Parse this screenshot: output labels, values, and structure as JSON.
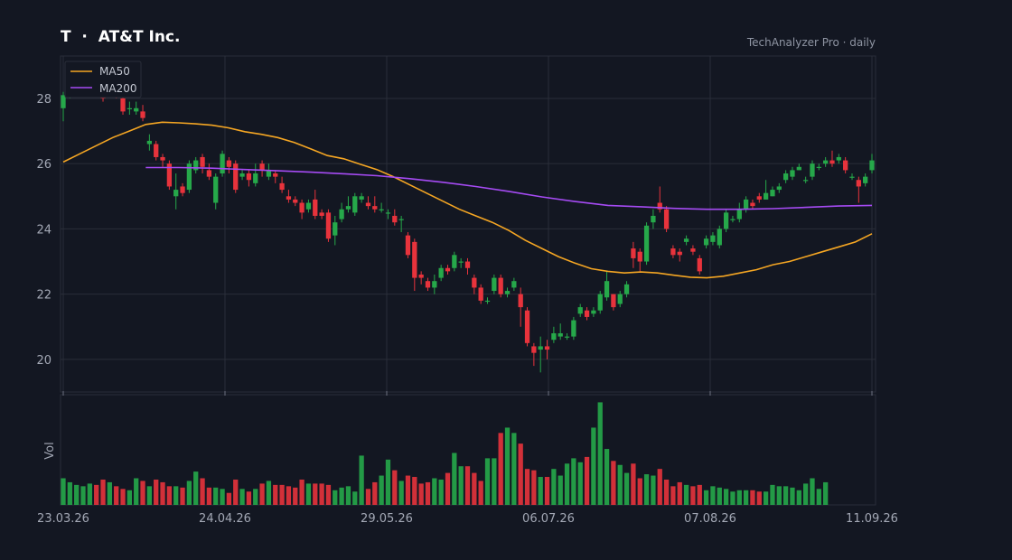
{
  "header": {
    "title": "T  ·  AT&T Inc.",
    "source": "TechAnalyzer Pro · daily"
  },
  "colors": {
    "background": "#131722",
    "up": "#26a84a",
    "down": "#e8333c",
    "ma50": "#f5a623",
    "ma200": "#a64bf4",
    "grid": "#2a2e39",
    "axis_text": "#a3a8b5"
  },
  "chart_data": {
    "type": "candlestick",
    "x_tick_labels": [
      "23.03.26",
      "24.04.26",
      "29.05.26",
      "06.07.26",
      "07.08.26",
      "11.09.26"
    ],
    "y_ticks": [
      20,
      22,
      24,
      26,
      28
    ],
    "ylim": [
      19,
      29.3
    ],
    "volume_label": "Vol",
    "grid": true,
    "legend": {
      "position": "top-left",
      "entries": [
        "MA50",
        "MA200"
      ]
    },
    "candles": [
      [
        27.7,
        28.1,
        28.2,
        27.3
      ],
      [
        28.1,
        28.2,
        28.3,
        28.0
      ],
      [
        28.2,
        28.3,
        28.4,
        28.1
      ],
      [
        28.3,
        28.4,
        28.5,
        28.2
      ],
      [
        28.4,
        28.5,
        28.6,
        28.3
      ],
      [
        28.5,
        28.4,
        28.6,
        28.3
      ],
      [
        28.5,
        28.0,
        28.6,
        27.9
      ],
      [
        28.2,
        28.6,
        28.8,
        28.1
      ],
      [
        28.4,
        28.2,
        28.6,
        28.0
      ],
      [
        28.0,
        27.6,
        28.1,
        27.5
      ],
      [
        27.7,
        27.7,
        27.9,
        27.5
      ],
      [
        27.6,
        27.7,
        27.9,
        27.5
      ],
      [
        27.6,
        27.4,
        27.8,
        27.3
      ],
      [
        26.6,
        26.7,
        26.9,
        26.4
      ],
      [
        26.6,
        26.2,
        26.7,
        26.1
      ],
      [
        26.2,
        26.1,
        26.3,
        25.9
      ],
      [
        26.0,
        25.3,
        26.1,
        25.2
      ],
      [
        25.0,
        25.2,
        25.7,
        24.6
      ],
      [
        25.3,
        25.1,
        25.4,
        25.0
      ],
      [
        25.2,
        26.0,
        26.1,
        25.1
      ],
      [
        25.8,
        26.1,
        26.2,
        25.7
      ],
      [
        26.2,
        25.9,
        26.3,
        25.7
      ],
      [
        25.8,
        25.6,
        26.0,
        25.5
      ],
      [
        24.8,
        25.6,
        25.7,
        24.6
      ],
      [
        25.7,
        26.3,
        26.4,
        25.6
      ],
      [
        26.1,
        25.9,
        26.2,
        25.7
      ],
      [
        26.0,
        25.2,
        26.1,
        25.1
      ],
      [
        25.6,
        25.7,
        25.8,
        25.5
      ],
      [
        25.7,
        25.5,
        25.8,
        25.3
      ],
      [
        25.4,
        25.7,
        26.0,
        25.3
      ],
      [
        26.0,
        25.8,
        26.1,
        25.6
      ],
      [
        25.6,
        25.8,
        26.0,
        25.5
      ],
      [
        25.7,
        25.6,
        25.8,
        25.4
      ],
      [
        25.4,
        25.2,
        25.6,
        25.1
      ],
      [
        25.0,
        24.9,
        25.2,
        24.8
      ],
      [
        24.9,
        24.8,
        25.0,
        24.7
      ],
      [
        24.8,
        24.5,
        24.9,
        24.3
      ],
      [
        24.6,
        24.8,
        24.9,
        24.5
      ],
      [
        24.9,
        24.4,
        25.2,
        24.3
      ],
      [
        24.5,
        24.4,
        24.6,
        24.3
      ],
      [
        24.5,
        23.7,
        24.6,
        23.6
      ],
      [
        23.8,
        24.2,
        24.4,
        23.5
      ],
      [
        24.3,
        24.6,
        24.8,
        24.2
      ],
      [
        24.6,
        24.7,
        25.0,
        24.5
      ],
      [
        24.5,
        25.0,
        25.1,
        24.4
      ],
      [
        24.9,
        25.0,
        25.1,
        24.8
      ],
      [
        24.8,
        24.7,
        25.0,
        24.6
      ],
      [
        24.7,
        24.6,
        25.0,
        24.5
      ],
      [
        24.6,
        24.6,
        24.8,
        24.5
      ],
      [
        24.5,
        24.5,
        24.6,
        24.3
      ],
      [
        24.4,
        24.2,
        24.6,
        24.1
      ],
      [
        24.3,
        24.3,
        24.4,
        23.9
      ],
      [
        23.8,
        23.2,
        23.9,
        23.1
      ],
      [
        23.6,
        22.5,
        23.7,
        22.1
      ],
      [
        22.6,
        22.5,
        22.7,
        22.3
      ],
      [
        22.4,
        22.2,
        22.5,
        22.1
      ],
      [
        22.2,
        22.4,
        22.6,
        22.0
      ],
      [
        22.5,
        22.8,
        22.9,
        22.4
      ],
      [
        22.8,
        22.7,
        22.9,
        22.6
      ],
      [
        22.8,
        23.2,
        23.3,
        22.7
      ],
      [
        23.0,
        23.0,
        23.1,
        22.8
      ],
      [
        23.0,
        22.8,
        23.1,
        22.6
      ],
      [
        22.5,
        22.2,
        22.6,
        22.0
      ],
      [
        22.2,
        21.8,
        22.3,
        21.7
      ],
      [
        21.8,
        21.8,
        21.9,
        21.7
      ],
      [
        22.1,
        22.5,
        22.6,
        22.0
      ],
      [
        22.5,
        22.0,
        22.6,
        21.9
      ],
      [
        22.0,
        22.1,
        22.2,
        21.9
      ],
      [
        22.2,
        22.4,
        22.5,
        22.1
      ],
      [
        22.0,
        21.6,
        22.2,
        21.0
      ],
      [
        21.5,
        20.5,
        21.6,
        20.4
      ],
      [
        20.4,
        20.2,
        20.5,
        19.8
      ],
      [
        20.3,
        20.4,
        20.7,
        19.6
      ],
      [
        20.4,
        20.3,
        20.6,
        20.0
      ],
      [
        20.6,
        20.8,
        21.0,
        20.5
      ],
      [
        20.7,
        20.8,
        21.1,
        20.6
      ],
      [
        20.7,
        20.7,
        20.8,
        20.6
      ],
      [
        20.7,
        21.2,
        21.3,
        20.6
      ],
      [
        21.4,
        21.6,
        21.7,
        21.3
      ],
      [
        21.5,
        21.3,
        21.6,
        21.2
      ],
      [
        21.4,
        21.5,
        21.6,
        21.3
      ],
      [
        21.5,
        22.0,
        22.1,
        21.4
      ],
      [
        21.9,
        22.4,
        22.7,
        21.8
      ],
      [
        22.0,
        21.6,
        22.0,
        21.5
      ],
      [
        21.7,
        22.0,
        22.1,
        21.6
      ],
      [
        22.0,
        22.3,
        22.4,
        21.9
      ],
      [
        23.4,
        23.1,
        23.6,
        22.8
      ],
      [
        23.3,
        23.0,
        23.4,
        22.7
      ],
      [
        23.0,
        24.1,
        24.2,
        22.9
      ],
      [
        24.2,
        24.4,
        24.6,
        24.0
      ],
      [
        24.8,
        24.6,
        25.3,
        24.5
      ],
      [
        24.6,
        24.0,
        24.7,
        23.9
      ],
      [
        23.4,
        23.2,
        23.5,
        23.1
      ],
      [
        23.3,
        23.2,
        23.4,
        23.0
      ],
      [
        23.6,
        23.7,
        23.8,
        23.5
      ],
      [
        23.4,
        23.3,
        23.5,
        23.2
      ],
      [
        23.1,
        22.7,
        23.2,
        22.6
      ],
      [
        23.5,
        23.7,
        23.8,
        23.4
      ],
      [
        23.6,
        23.8,
        23.9,
        23.5
      ],
      [
        23.5,
        24.0,
        24.1,
        23.4
      ],
      [
        24.0,
        24.5,
        24.6,
        23.9
      ],
      [
        24.3,
        24.3,
        24.4,
        24.2
      ],
      [
        24.3,
        24.6,
        24.8,
        24.2
      ],
      [
        24.6,
        24.9,
        25.0,
        24.5
      ],
      [
        24.8,
        24.7,
        24.9,
        24.6
      ],
      [
        25.0,
        24.9,
        25.1,
        24.8
      ],
      [
        24.9,
        25.1,
        25.5,
        24.9
      ],
      [
        25.0,
        25.2,
        25.3,
        25.0
      ],
      [
        25.2,
        25.3,
        25.4,
        25.1
      ],
      [
        25.5,
        25.7,
        25.8,
        25.4
      ],
      [
        25.6,
        25.8,
        25.9,
        25.5
      ],
      [
        25.8,
        25.9,
        26.0,
        25.8
      ],
      [
        25.5,
        25.5,
        25.6,
        25.4
      ],
      [
        25.6,
        26.0,
        26.1,
        25.5
      ],
      [
        25.9,
        25.9,
        26.0,
        25.8
      ],
      [
        26.0,
        26.1,
        26.2,
        25.9
      ],
      [
        26.1,
        26.0,
        26.4,
        25.9
      ],
      [
        26.1,
        26.2,
        26.3,
        26.0
      ],
      [
        26.1,
        25.8,
        26.2,
        25.7
      ],
      [
        25.6,
        25.6,
        25.7,
        25.5
      ],
      [
        25.5,
        25.3,
        25.6,
        24.8
      ],
      [
        25.4,
        25.6,
        25.7,
        25.3
      ],
      [
        25.8,
        26.1,
        26.3,
        25.7
      ]
    ],
    "volumes": [
      1.0,
      0.85,
      0.75,
      0.7,
      0.8,
      0.75,
      0.95,
      0.85,
      0.7,
      0.6,
      0.55,
      1.0,
      0.9,
      0.7,
      0.95,
      0.85,
      0.7,
      0.7,
      0.65,
      0.9,
      1.25,
      1.0,
      0.65,
      0.65,
      0.6,
      0.45,
      0.95,
      0.6,
      0.5,
      0.6,
      0.8,
      0.9,
      0.75,
      0.75,
      0.7,
      0.65,
      0.95,
      0.8,
      0.8,
      0.8,
      0.75,
      0.55,
      0.65,
      0.7,
      0.5,
      1.85,
      0.6,
      0.85,
      1.1,
      1.7,
      1.3,
      0.9,
      1.1,
      1.05,
      0.8,
      0.85,
      1.0,
      0.95,
      1.2,
      1.95,
      1.45,
      1.45,
      1.2,
      0.9,
      1.75,
      1.75,
      2.7,
      2.9,
      2.7,
      2.3,
      1.35,
      1.3,
      1.05,
      1.05,
      1.35,
      1.1,
      1.55,
      1.75,
      1.6,
      1.8,
      2.9,
      3.85,
      2.1,
      1.65,
      1.5,
      1.2,
      1.55,
      1.0,
      1.15,
      1.1,
      1.35,
      0.95,
      0.7,
      0.85,
      0.75,
      0.7,
      0.75,
      0.55,
      0.7,
      0.65,
      0.6,
      0.5,
      0.55,
      0.55,
      0.55,
      0.5,
      0.5,
      0.75,
      0.7,
      0.7,
      0.65,
      0.55,
      0.8,
      1.0,
      0.6,
      0.85
    ],
    "ma50": [
      [
        0,
        26.05
      ],
      [
        4,
        26.3
      ],
      [
        8,
        26.55
      ],
      [
        12,
        26.8
      ],
      [
        16,
        27.0
      ],
      [
        20,
        27.2
      ],
      [
        24,
        27.27
      ],
      [
        28,
        27.25
      ],
      [
        32,
        27.22
      ],
      [
        36,
        27.18
      ],
      [
        40,
        27.1
      ],
      [
        44,
        26.98
      ],
      [
        48,
        26.9
      ],
      [
        52,
        26.8
      ],
      [
        56,
        26.65
      ],
      [
        60,
        26.45
      ],
      [
        64,
        26.25
      ],
      [
        68,
        26.15
      ],
      [
        72,
        25.98
      ],
      [
        76,
        25.82
      ],
      [
        80,
        25.6
      ],
      [
        84,
        25.35
      ],
      [
        88,
        25.1
      ],
      [
        92,
        24.85
      ],
      [
        96,
        24.6
      ],
      [
        100,
        24.4
      ],
      [
        104,
        24.2
      ],
      [
        108,
        23.95
      ],
      [
        112,
        23.65
      ],
      [
        116,
        23.4
      ],
      [
        120,
        23.15
      ],
      [
        124,
        22.95
      ],
      [
        128,
        22.78
      ],
      [
        132,
        22.7
      ],
      [
        136,
        22.65
      ],
      [
        140,
        22.68
      ],
      [
        144,
        22.65
      ],
      [
        148,
        22.58
      ],
      [
        152,
        22.52
      ],
      [
        156,
        22.5
      ],
      [
        160,
        22.55
      ],
      [
        164,
        22.65
      ],
      [
        168,
        22.75
      ],
      [
        172,
        22.9
      ],
      [
        176,
        23.0
      ],
      [
        180,
        23.15
      ],
      [
        184,
        23.3
      ],
      [
        188,
        23.45
      ],
      [
        192,
        23.6
      ],
      [
        196,
        23.85
      ]
    ],
    "ma200": [
      [
        20,
        25.88
      ],
      [
        28,
        25.88
      ],
      [
        36,
        25.86
      ],
      [
        44,
        25.82
      ],
      [
        52,
        25.78
      ],
      [
        60,
        25.74
      ],
      [
        68,
        25.69
      ],
      [
        76,
        25.63
      ],
      [
        84,
        25.54
      ],
      [
        92,
        25.43
      ],
      [
        100,
        25.3
      ],
      [
        108,
        25.15
      ],
      [
        116,
        24.98
      ],
      [
        124,
        24.84
      ],
      [
        132,
        24.72
      ],
      [
        140,
        24.68
      ],
      [
        148,
        24.63
      ],
      [
        156,
        24.6
      ],
      [
        164,
        24.6
      ],
      [
        172,
        24.62
      ],
      [
        180,
        24.66
      ],
      [
        188,
        24.7
      ],
      [
        196,
        24.72
      ]
    ],
    "ma_x_max": 196
  }
}
